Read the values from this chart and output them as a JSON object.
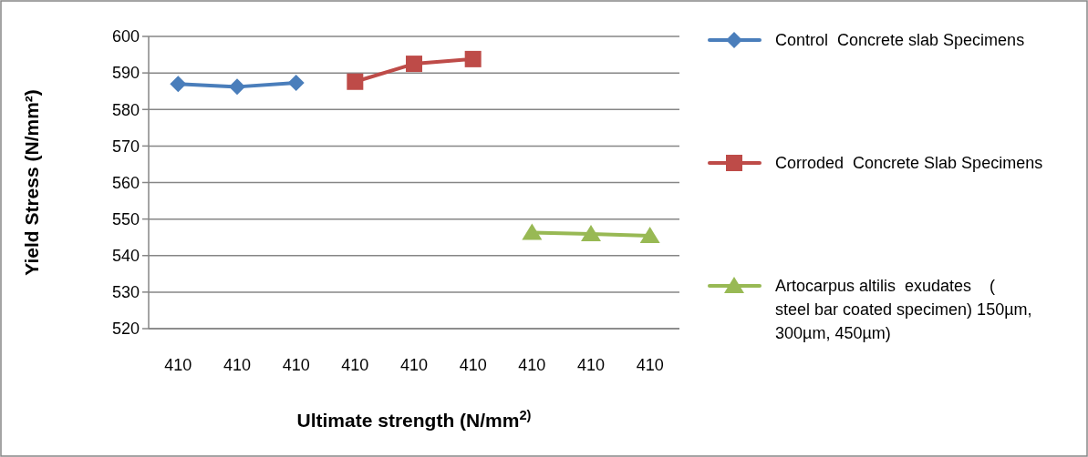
{
  "chart_data": {
    "type": "line",
    "xlabel": "Ultimate strength (N/mm$^{2)}$",
    "ylabel": "Yield Stress (N/mm²)",
    "categories": [
      "410",
      "410",
      "410",
      "410",
      "410",
      "410",
      "410",
      "410",
      "410"
    ],
    "ylim": [
      520,
      600
    ],
    "yticks": [
      520,
      530,
      540,
      550,
      560,
      570,
      580,
      590,
      600
    ],
    "grid": "y",
    "legend": "right",
    "series": [
      {
        "name": "Control  Concrete slab Specimens",
        "color": "#4a7ebb",
        "marker": "diamond",
        "values": [
          587.0,
          586.2,
          587.3,
          null,
          null,
          null,
          null,
          null,
          null
        ]
      },
      {
        "name": "Corroded  Concrete Slab Specimens",
        "color": "#be4b48",
        "marker": "square",
        "values": [
          null,
          null,
          null,
          587.6,
          592.5,
          593.8,
          null,
          null,
          null
        ]
      },
      {
        "name": "Artocarpus altilis  exudates    ( steel bar coated specimen) 150µm, 300µm, 450µm)",
        "color": "#98b954",
        "marker": "triangle",
        "values": [
          null,
          null,
          null,
          null,
          null,
          null,
          546.3,
          545.9,
          545.4
        ]
      }
    ]
  }
}
